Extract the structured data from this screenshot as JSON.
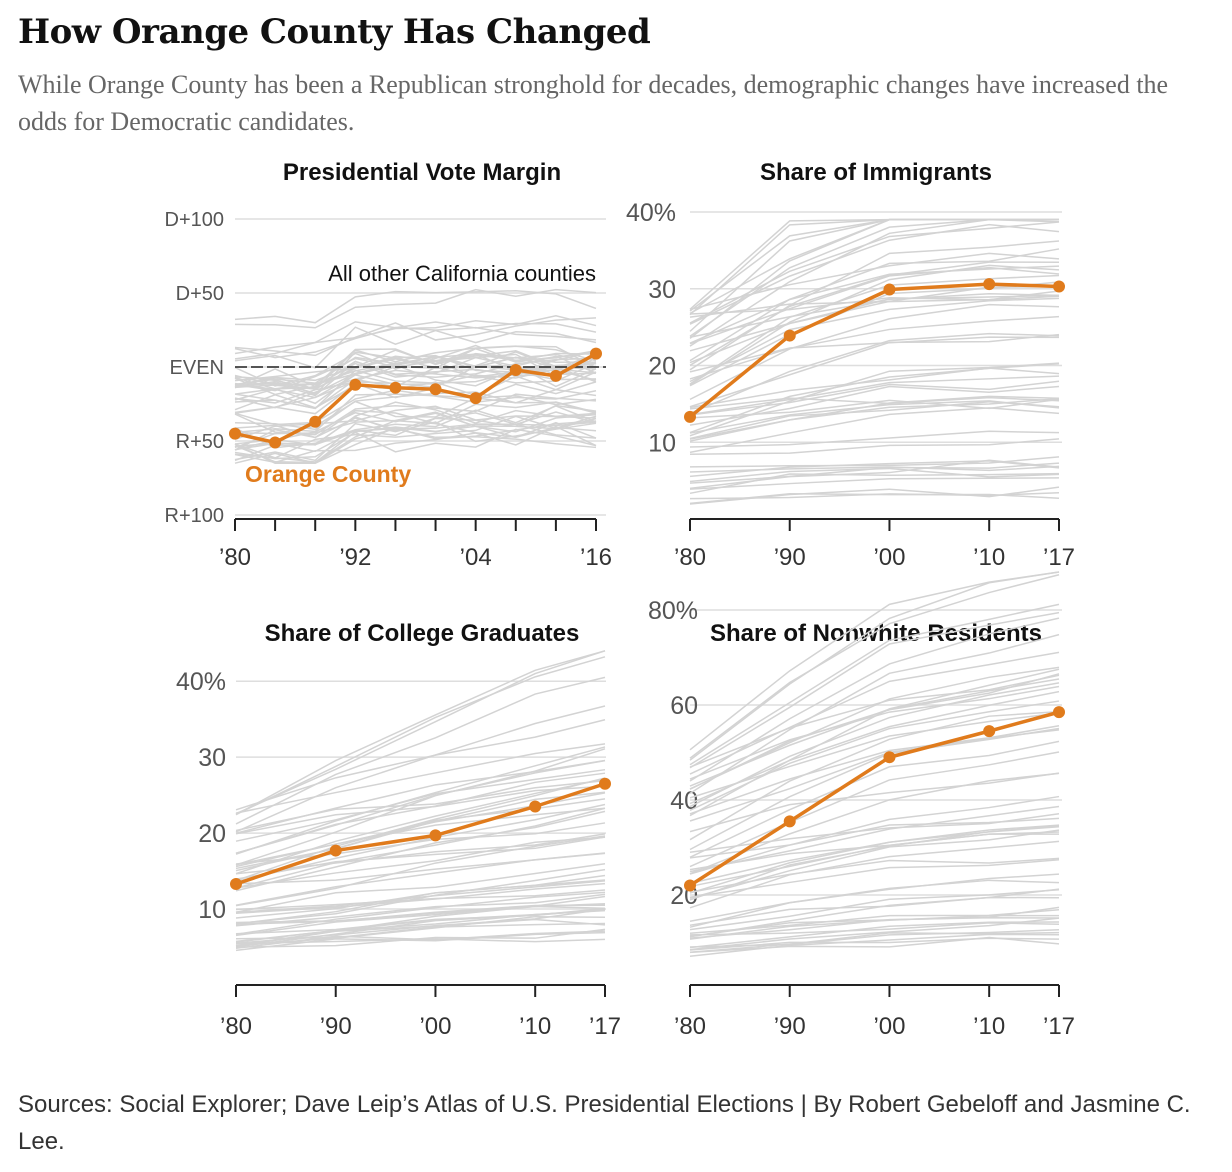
{
  "header": {
    "title": "How Orange County Has Changed",
    "subtitle": "While Orange County has been a Republican stronghold for decades, demographic changes have increased the odds for Democratic candidates."
  },
  "footer": {
    "source": "Sources: Social Explorer; Dave Leip’s Atlas of U.S. Presidential Elections | By Robert Gebeloff and Jasmine C. Lee."
  },
  "colors": {
    "orange": "#e07b1c",
    "gray": "#d3d3d3"
  },
  "chart_data": [
    {
      "id": "vote",
      "type": "line",
      "title": "Presidential Vote Margin",
      "x": [
        1980,
        1984,
        1988,
        1992,
        1996,
        2000,
        2004,
        2008,
        2012,
        2016
      ],
      "x_ticks": [
        1980,
        1984,
        1988,
        1992,
        1996,
        2000,
        2004,
        2008,
        2012,
        2016
      ],
      "x_tick_labels": [
        "’80",
        "",
        "",
        "’92",
        "",
        "",
        "’04",
        "",
        "",
        "’16"
      ],
      "ylim": [
        -100,
        100
      ],
      "y_ticks": [
        100,
        50,
        0,
        -50,
        -100
      ],
      "y_tick_labels": [
        "D+100",
        "D+50",
        "EVEN",
        "R+50",
        "R+100"
      ],
      "reference_line": 0,
      "annotations": {
        "others": "All other California counties",
        "highlight": "Orange County"
      },
      "series": [
        {
          "name": "Orange County",
          "highlight": true,
          "values": [
            -45,
            -51,
            -37,
            -12,
            -14,
            -15,
            -21,
            -2,
            -6,
            9
          ]
        }
      ]
    },
    {
      "id": "immigrants",
      "type": "line",
      "title": "Share of Immigrants",
      "x": [
        1980,
        1990,
        2000,
        2010,
        2017
      ],
      "x_ticks": [
        1980,
        1990,
        2000,
        2010,
        2017
      ],
      "x_tick_labels": [
        "’80",
        "’90",
        "’00",
        "’10",
        "’17"
      ],
      "ylim": [
        0,
        40
      ],
      "y_ticks": [
        10,
        20,
        30,
        40
      ],
      "y_tick_labels": [
        "10",
        "20",
        "30",
        "40%"
      ],
      "series": [
        {
          "name": "Orange County",
          "highlight": true,
          "values": [
            13.3,
            23.9,
            29.9,
            30.6,
            30.3
          ]
        }
      ]
    },
    {
      "id": "college",
      "type": "line",
      "title": "Share of College Graduates",
      "x": [
        1980,
        1990,
        2000,
        2010,
        2017
      ],
      "x_ticks": [
        1980,
        1990,
        2000,
        2010,
        2017
      ],
      "x_tick_labels": [
        "’80",
        "’90",
        "’00",
        "’10",
        "’17"
      ],
      "ylim": [
        0,
        42
      ],
      "y_ticks": [
        10,
        20,
        30,
        40
      ],
      "y_tick_labels": [
        "10",
        "20",
        "30",
        "40%"
      ],
      "series": [
        {
          "name": "Orange County",
          "highlight": true,
          "values": [
            13.3,
            17.7,
            19.7,
            23.5,
            26.5
          ]
        }
      ]
    },
    {
      "id": "nonwhite",
      "type": "line",
      "title": "Share of Nonwhite Residents",
      "x": [
        1980,
        1990,
        2000,
        2010,
        2017
      ],
      "x_ticks": [
        1980,
        1990,
        2000,
        2010,
        2017
      ],
      "x_tick_labels": [
        "’80",
        "’90",
        "’00",
        "’10",
        "’17"
      ],
      "ylim": [
        0,
        80
      ],
      "y_ticks": [
        20,
        40,
        60,
        80
      ],
      "y_tick_labels": [
        "20",
        "40",
        "60",
        "80%"
      ],
      "series": [
        {
          "name": "Orange County",
          "highlight": true,
          "values": [
            22,
            35.5,
            49,
            54.5,
            58.5
          ]
        }
      ]
    }
  ]
}
